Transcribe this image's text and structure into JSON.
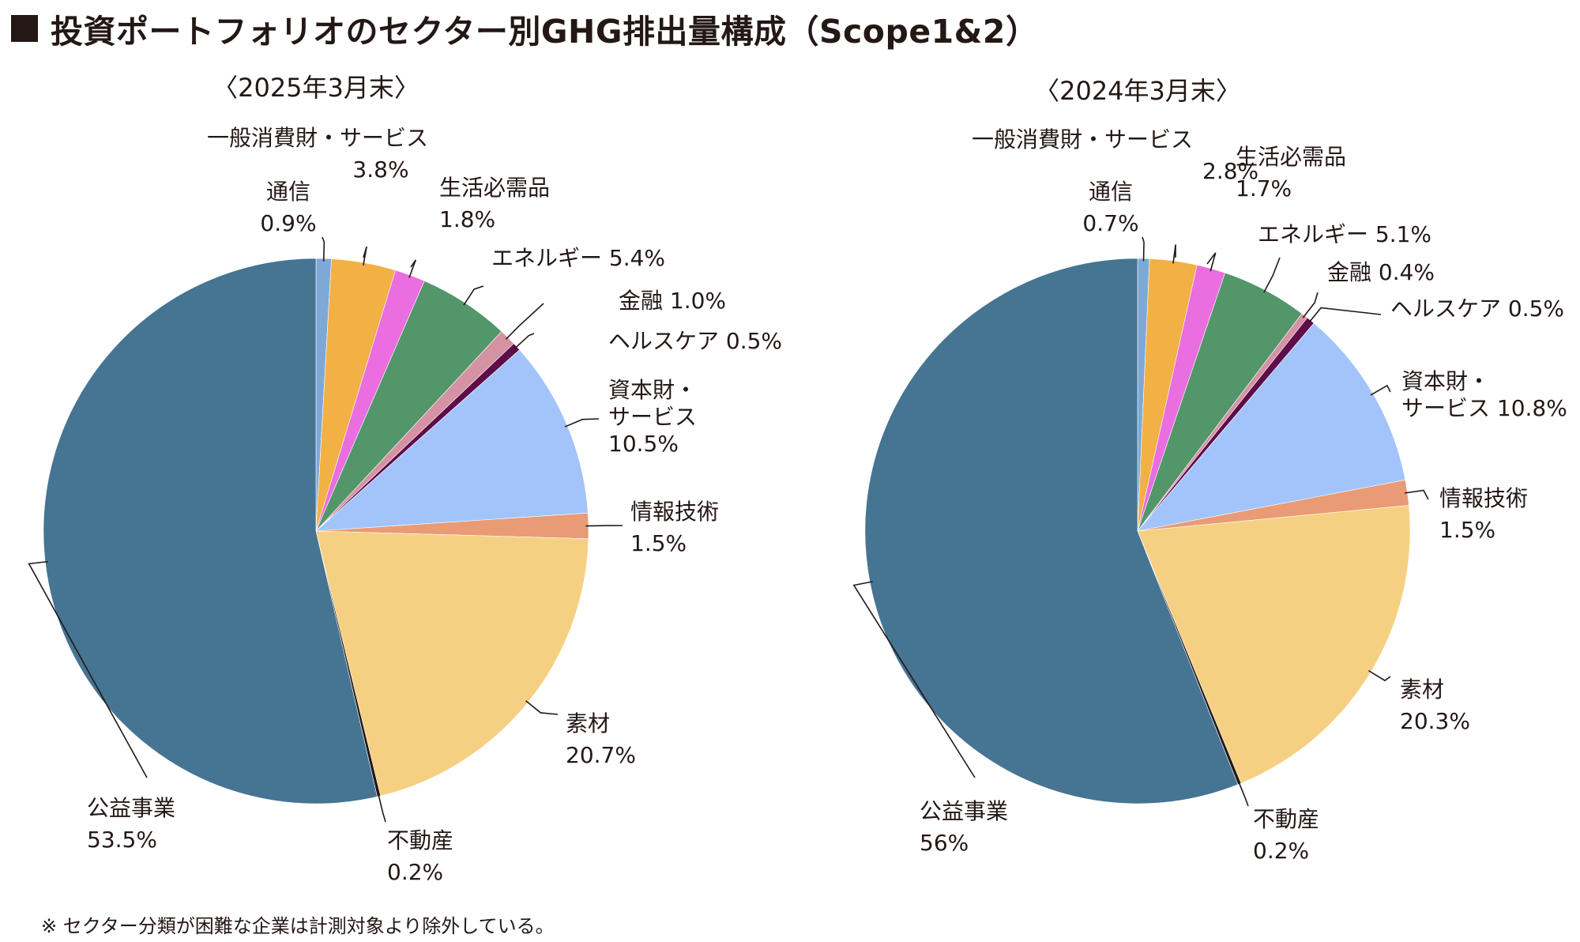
{
  "title": "投資ポートフォリオのセクター別GHG排出量構成（Scope1&2）",
  "footnote": "※ セクター分類が困難な企業は計測対象より除外している。",
  "colors": {
    "通信": "#7ea9d6",
    "一般消費財・サービス": "#f2b045",
    "生活必需品": "#ea6ee0",
    "エネルギー": "#52966a",
    "金融": "#d492a3",
    "ヘルスケア": "#5e0c4a",
    "資本財・サービス": "#a3c4fa",
    "情報技術": "#e99b75",
    "素材": "#f6d082",
    "不動産": "#231815",
    "公益事業": "#467493"
  },
  "chart_data": [
    {
      "type": "pie",
      "title": "〈2025年3月末〉",
      "start": "12 o'clock, clockwise",
      "slices": [
        {
          "label": "通信",
          "value": 0.9,
          "value_label": "0.9%"
        },
        {
          "label": "一般消費財・サービス",
          "value": 3.8,
          "value_label": "3.8%"
        },
        {
          "label": "生活必需品",
          "value": 1.8,
          "value_label": "1.8%"
        },
        {
          "label": "エネルギー",
          "value": 5.4,
          "value_label": "5.4%"
        },
        {
          "label": "金融",
          "value": 1.0,
          "value_label": "1.0%"
        },
        {
          "label": "ヘルスケア",
          "value": 0.5,
          "value_label": "0.5%"
        },
        {
          "label": "資本財・サービス",
          "value": 10.5,
          "value_label": "10.5%"
        },
        {
          "label": "情報技術",
          "value": 1.5,
          "value_label": "1.5%"
        },
        {
          "label": "素材",
          "value": 20.7,
          "value_label": "20.7%"
        },
        {
          "label": "不動産",
          "value": 0.2,
          "value_label": "0.2%"
        },
        {
          "label": "公益事業",
          "value": 53.5,
          "value_label": "53.5%"
        }
      ]
    },
    {
      "type": "pie",
      "title": "〈2024年3月末〉",
      "start": "12 o'clock, clockwise",
      "slices": [
        {
          "label": "通信",
          "value": 0.7,
          "value_label": "0.7%"
        },
        {
          "label": "一般消費財・サービス",
          "value": 2.8,
          "value_label": "2.8%"
        },
        {
          "label": "生活必需品",
          "value": 1.7,
          "value_label": "1.7%"
        },
        {
          "label": "エネルギー",
          "value": 5.1,
          "value_label": "5.1%"
        },
        {
          "label": "金融",
          "value": 0.4,
          "value_label": "0.4%"
        },
        {
          "label": "ヘルスケア",
          "value": 0.5,
          "value_label": "0.5%"
        },
        {
          "label": "資本財・サービス",
          "value": 10.8,
          "value_label": "10.8%"
        },
        {
          "label": "情報技術",
          "value": 1.5,
          "value_label": "1.5%"
        },
        {
          "label": "素材",
          "value": 20.3,
          "value_label": "20.3%"
        },
        {
          "label": "不動産",
          "value": 0.2,
          "value_label": "0.2%"
        },
        {
          "label": "公益事業",
          "value": 56,
          "value_label": "56%"
        }
      ]
    }
  ]
}
